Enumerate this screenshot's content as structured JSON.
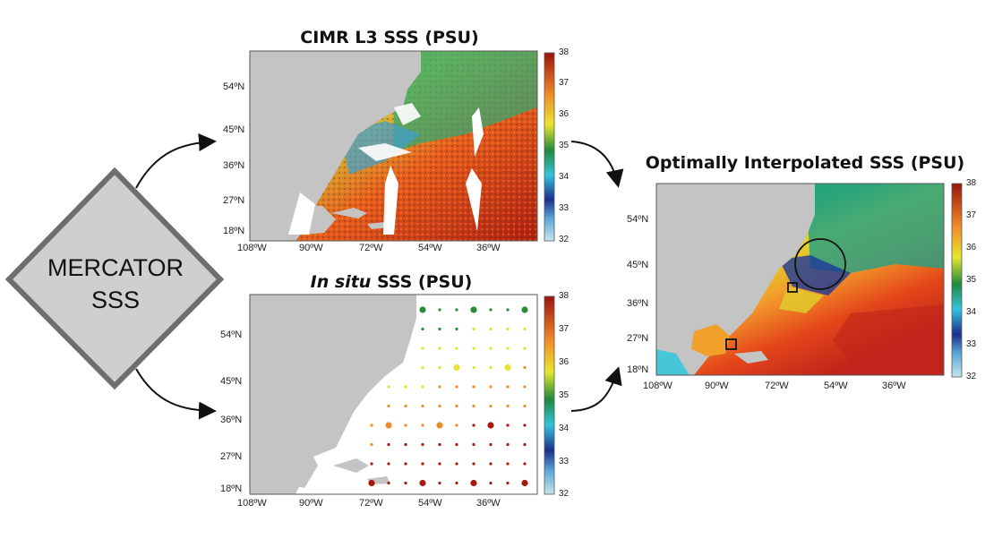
{
  "source_box": {
    "line1": "MERCATOR",
    "line2": "SSS"
  },
  "panels": {
    "cimr": {
      "title": "CIMR L3 SSS (PSU)",
      "lat_ticks": [
        "54ºN",
        "45ºN",
        "36ºN",
        "27ºN",
        "18ºN"
      ],
      "lon_ticks": [
        "108ºW",
        "90ºW",
        "72ºW",
        "54ºW",
        "36ºW"
      ],
      "colorbar_ticks": [
        "38",
        "37",
        "36",
        "35",
        "34",
        "33",
        "32"
      ]
    },
    "insitu": {
      "title_italic": "In situ",
      "title_rest": " SSS (PSU)",
      "lat_ticks": [
        "54ºN",
        "45ºN",
        "36ºN",
        "27ºN",
        "18ºN"
      ],
      "lon_ticks": [
        "108ºW",
        "90ºW",
        "72ºW",
        "54ºW",
        "36ºW"
      ],
      "colorbar_ticks": [
        "38",
        "37",
        "36",
        "35",
        "34",
        "33",
        "32"
      ]
    },
    "oi": {
      "title": "Optimally Interpolated SSS (PSU)",
      "lat_ticks": [
        "54ºN",
        "45ºN",
        "36ºN",
        "27ºN",
        "18ºN"
      ],
      "lon_ticks": [
        "108ºW",
        "90ºW",
        "72ºW",
        "54ºW",
        "36ºW"
      ],
      "colorbar_ticks": [
        "38",
        "37",
        "36",
        "35",
        "34",
        "33",
        "32"
      ]
    }
  },
  "colors": {
    "land": "#c4c4c4",
    "diamond_fill": "#cfcfcf",
    "diamond_border": "#6e6e6e",
    "colormap": [
      "#b8dde8",
      "#1a2f8a",
      "#3ac6dc",
      "#2a8a3a",
      "#e6e230",
      "#f08a2a",
      "#a8180f"
    ]
  }
}
